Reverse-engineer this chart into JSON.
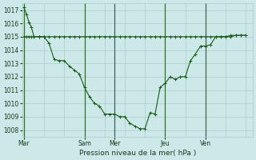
{
  "background_color": "#cce8e8",
  "grid_color": "#aacccc",
  "line_color": "#1a5c1a",
  "marker_color": "#1a5c1a",
  "xlabel": "Pression niveau de la mer( hPa )",
  "ylim": [
    1007.5,
    1017.5
  ],
  "yticks": [
    1008,
    1009,
    1010,
    1011,
    1012,
    1013,
    1014,
    1015,
    1016,
    1017
  ],
  "day_labels": [
    "Mar",
    "Sam",
    "Mer",
    "Jeu",
    "Ven"
  ],
  "day_positions": [
    0,
    72,
    108,
    168,
    216
  ],
  "total_hours": 264,
  "series1_x": [
    0,
    3,
    6,
    9,
    12,
    18,
    24,
    30,
    36,
    42,
    48,
    54,
    60,
    66,
    72,
    78,
    84,
    90,
    96,
    102,
    108,
    114,
    120,
    126,
    132,
    138,
    144,
    150,
    156,
    162,
    168,
    174,
    180,
    186,
    192,
    198,
    204,
    210,
    216,
    222,
    228,
    234,
    240,
    246,
    252,
    258,
    264
  ],
  "series1_y": [
    1017.2,
    1016.7,
    1016.1,
    1015.7,
    1015.0,
    1015.0,
    1015.0,
    1014.5,
    1013.3,
    1013.2,
    1013.2,
    1012.8,
    1012.5,
    1012.2,
    1011.2,
    1010.5,
    1010.0,
    1009.8,
    1009.2,
    1009.2,
    1009.2,
    1009.0,
    1009.0,
    1008.5,
    1008.3,
    1008.1,
    1008.1,
    1009.3,
    1009.2,
    1011.2,
    1011.5,
    1012.0,
    1011.8,
    1012.0,
    1012.0,
    1013.2,
    1013.7,
    1014.3,
    1014.3,
    1014.4,
    1015.0,
    1015.0,
    1015.0,
    1015.0,
    1015.1,
    1015.1,
    1015.1
  ],
  "series2_x": [
    0,
    3,
    6,
    9,
    12,
    18,
    24,
    30,
    36,
    42,
    48,
    54,
    60,
    66,
    72,
    78,
    84,
    90,
    96,
    102,
    108,
    114,
    120,
    126,
    132,
    138,
    144,
    150,
    156,
    162,
    168,
    174,
    180,
    186,
    192,
    198,
    204,
    210,
    216,
    222,
    228,
    234,
    240,
    246,
    252,
    258,
    264
  ],
  "series2_y": [
    1015.0,
    1015.0,
    1015.0,
    1015.0,
    1015.0,
    1015.0,
    1015.0,
    1015.0,
    1015.0,
    1015.0,
    1015.0,
    1015.0,
    1015.0,
    1015.0,
    1015.0,
    1015.0,
    1015.0,
    1015.0,
    1015.0,
    1015.0,
    1015.0,
    1015.0,
    1015.0,
    1015.0,
    1015.0,
    1015.0,
    1015.0,
    1015.0,
    1015.0,
    1015.0,
    1015.0,
    1015.0,
    1015.0,
    1015.0,
    1015.0,
    1015.0,
    1015.0,
    1015.0,
    1015.0,
    1015.0,
    1015.0,
    1015.0,
    1015.0,
    1015.1,
    1015.1,
    1015.1,
    1015.1
  ]
}
